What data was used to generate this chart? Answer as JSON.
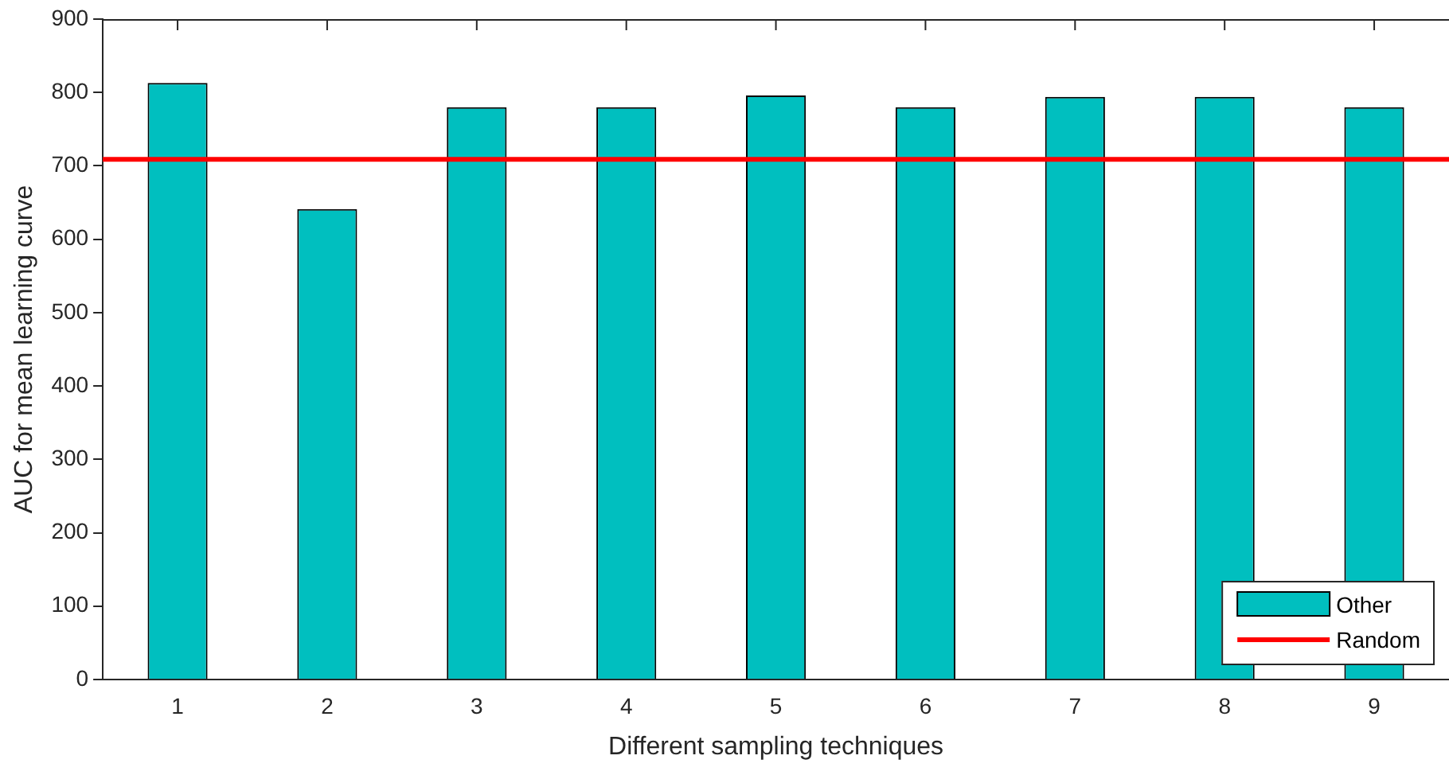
{
  "chart_data": {
    "type": "bar",
    "xlabel": "Different sampling techniques",
    "ylabel": "AUC for mean learning curve",
    "categories": [
      "1",
      "2",
      "3",
      "4",
      "5",
      "6",
      "7",
      "8",
      "9"
    ],
    "series": [
      {
        "name": "Other",
        "color": "#00bfbf",
        "values": [
          813,
          641,
          780,
          780,
          796,
          780,
          794,
          794,
          780
        ]
      }
    ],
    "ylim": [
      0,
      900
    ],
    "yticks": [
      0,
      100,
      200,
      300,
      400,
      500,
      600,
      700,
      800,
      900
    ],
    "ref_lines": [
      {
        "axis": "y",
        "value": 709,
        "label": "Random",
        "color": "#ff0000"
      }
    ],
    "grid": false,
    "legend": "bottom right"
  }
}
